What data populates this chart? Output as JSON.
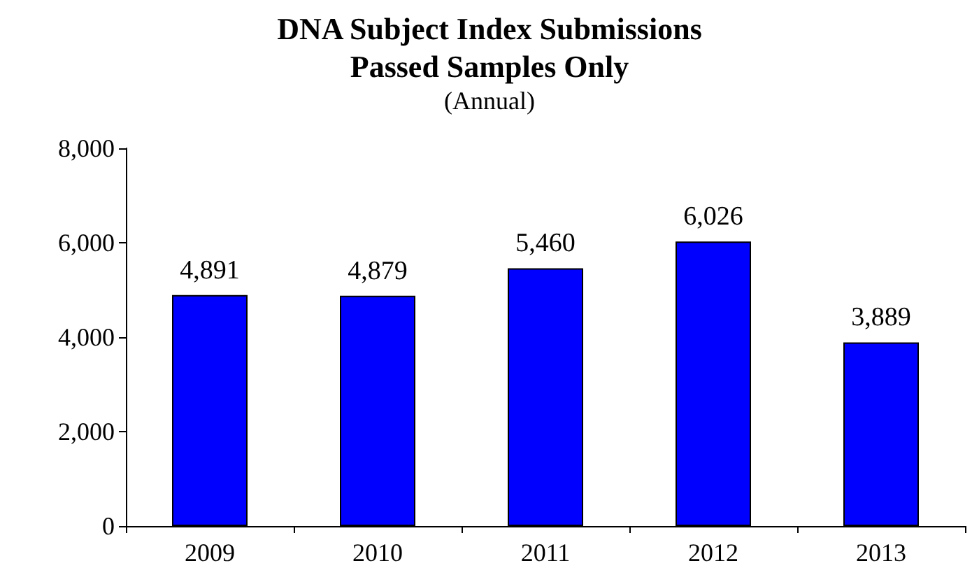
{
  "chart_data": {
    "type": "bar",
    "title": "DNA Subject Index Submissions\nPassed Samples Only",
    "subtitle": "(Annual)",
    "categories": [
      "2009",
      "2010",
      "2011",
      "2012",
      "2013"
    ],
    "values": [
      4891,
      4879,
      5460,
      6026,
      3889
    ],
    "color": "#0000ff",
    "value_labels": [
      "4,891",
      "4,879",
      "5,460",
      "6,026",
      "3,889"
    ],
    "ylim": [
      0,
      8000
    ],
    "yticks": [
      {
        "value": 0,
        "label": "0"
      },
      {
        "value": 2000,
        "label": "2,000"
      },
      {
        "value": 4000,
        "label": "4,000"
      },
      {
        "value": 6000,
        "label": "6,000"
      },
      {
        "value": 8000,
        "label": "8,000"
      }
    ],
    "grid": false
  }
}
